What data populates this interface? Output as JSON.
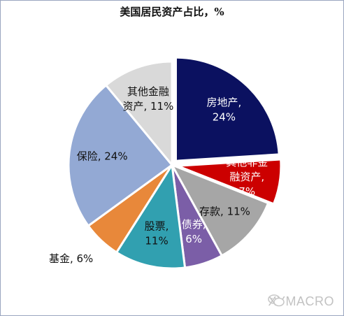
{
  "chart_data": {
    "type": "pie",
    "title": "美国居民资产占比，%",
    "slices": [
      {
        "name": "房地产",
        "value": 24,
        "label_lines": [
          "房地产,",
          "24%"
        ],
        "color": "#0b1160",
        "text_color": "#ffffff",
        "explode": true
      },
      {
        "name": "其他非金融资产",
        "value": 7,
        "label_lines": [
          "其他非金",
          "融资产,",
          "7%"
        ],
        "color": "#cc0000",
        "text_color": "#ffffff",
        "explode": true
      },
      {
        "name": "存款",
        "value": 11,
        "label_lines": [
          "存款, 11%"
        ],
        "color": "#a6a6a6",
        "text_color": "#111111",
        "explode": false
      },
      {
        "name": "债券",
        "value": 6,
        "label_lines": [
          "债券,",
          "6%"
        ],
        "color": "#7b5ea7",
        "text_color": "#ffffff",
        "explode": false
      },
      {
        "name": "股票",
        "value": 11,
        "label_lines": [
          "股票,",
          "11%"
        ],
        "color": "#31a0b0",
        "text_color": "#111111",
        "explode": false
      },
      {
        "name": "基金",
        "value": 6,
        "label_lines": [
          "基金, 6%"
        ],
        "color": "#e8883a",
        "text_color": "#111111",
        "explode": false,
        "outside": true
      },
      {
        "name": "保险",
        "value": 24,
        "label_lines": [
          "保险, 24%"
        ],
        "color": "#93a9d4",
        "text_color": "#111111",
        "explode": false
      },
      {
        "name": "其他金融资产",
        "value": 11,
        "label_lines": [
          "其他金融",
          "资产, 11%"
        ],
        "color": "#d9d9d9",
        "text_color": "#111111",
        "explode": false
      }
    ]
  },
  "watermark": "XYMACRO"
}
